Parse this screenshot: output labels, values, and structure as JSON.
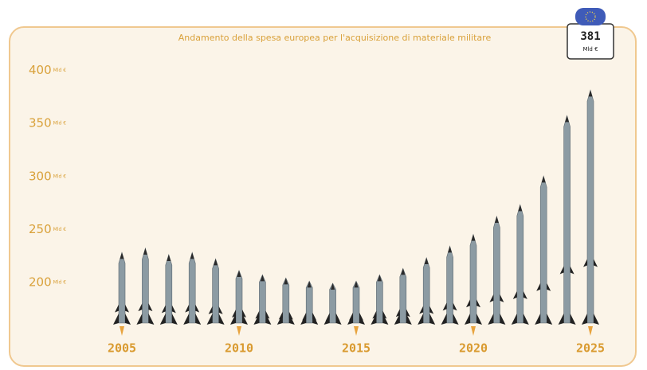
{
  "chart_data": {
    "type": "bar",
    "title": "Andamento della spesa europea per l'acquisizione di materiale militare",
    "categories": [
      "2005",
      null,
      null,
      null,
      null,
      "2010",
      null,
      null,
      null,
      null,
      "2015",
      null,
      null,
      null,
      null,
      "2020",
      null,
      null,
      null,
      null,
      "2025"
    ],
    "values": [
      228,
      232,
      226,
      228,
      222,
      211,
      207,
      204,
      201,
      199,
      201,
      207,
      213,
      223,
      234,
      245,
      262,
      273,
      300,
      357,
      381
    ],
    "y_unit": "Mld €",
    "color": "#8c9ba3",
    "ylim": [
      160,
      400
    ],
    "yticks": [
      200,
      250,
      300,
      350,
      400
    ],
    "grid": false
  }
}
